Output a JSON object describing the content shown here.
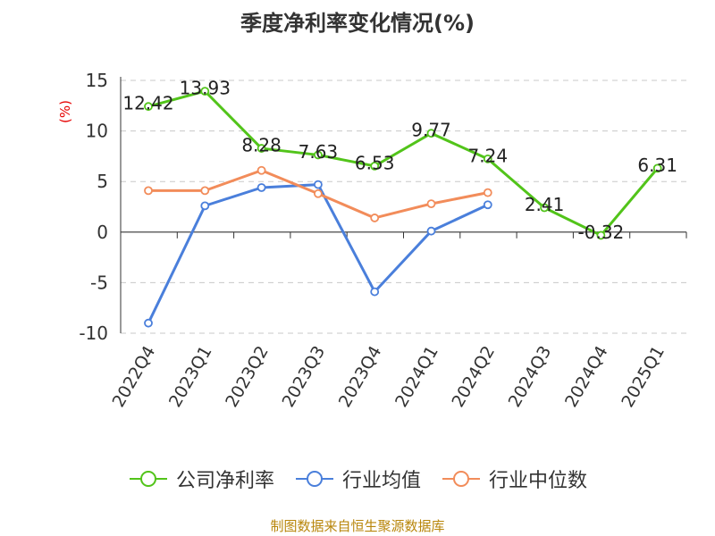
{
  "chart_data": {
    "type": "line",
    "title": "季度净利率变化情况(%)",
    "ylabel": "(%)",
    "xlabel": "",
    "categories": [
      "2022Q4",
      "2023Q1",
      "2023Q2",
      "2023Q3",
      "2023Q4",
      "2024Q1",
      "2024Q2",
      "2024Q3",
      "2024Q4",
      "2025Q1"
    ],
    "yticks": [
      15,
      10,
      5,
      0,
      -5,
      -10
    ],
    "ylim": [
      -10,
      15
    ],
    "grid": "horizontal-dashed",
    "legend_position": "bottom",
    "series": [
      {
        "name": "公司净利率",
        "color": "#52c41a",
        "values": [
          12.42,
          13.93,
          8.28,
          7.63,
          6.53,
          9.77,
          7.24,
          2.41,
          -0.32,
          6.31
        ],
        "labels": [
          "12.42",
          "13.93",
          "8.28",
          "7.63",
          "6.53",
          "9.77",
          "7.24",
          "2.41",
          "-0.32",
          "6.31"
        ]
      },
      {
        "name": "行业均值",
        "color": "#4a7fdb",
        "values": [
          -9.0,
          2.6,
          4.4,
          4.7,
          -5.9,
          0.1,
          2.7,
          null,
          null,
          null
        ]
      },
      {
        "name": "行业中位数",
        "color": "#f28c5a",
        "values": [
          4.1,
          4.1,
          6.1,
          3.8,
          1.4,
          2.8,
          3.9,
          null,
          null,
          null
        ]
      }
    ]
  },
  "source_note": "制图数据来自恒生聚源数据库"
}
